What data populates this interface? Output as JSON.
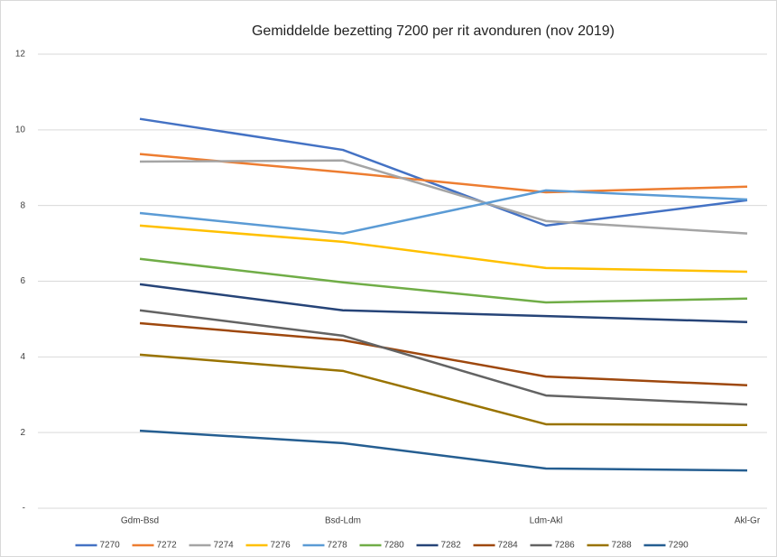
{
  "chart_data": {
    "type": "line",
    "title": "Gemiddelde bezetting 7200 per rit avonduren (nov 2019)",
    "categories": [
      "Gdm-Bsd",
      "Bsd-Ldm",
      "Ldm-Akl",
      "Akl-Gr"
    ],
    "ylim": [
      0,
      12
    ],
    "yticks": [
      {
        "value": 0,
        "label": "-"
      },
      2,
      4,
      6,
      8,
      10,
      12
    ],
    "grid": true,
    "legend": "bottom",
    "series": [
      {
        "name": "7270",
        "color": "#4472c4",
        "values": [
          10.29,
          9.47,
          7.47,
          8.14
        ]
      },
      {
        "name": "7272",
        "color": "#ed7d31",
        "values": [
          9.36,
          8.88,
          8.35,
          8.5
        ]
      },
      {
        "name": "7274",
        "color": "#a5a5a5",
        "values": [
          9.16,
          9.19,
          7.59,
          7.26
        ]
      },
      {
        "name": "7276",
        "color": "#ffc000",
        "values": [
          7.47,
          7.04,
          6.35,
          6.25
        ]
      },
      {
        "name": "7278",
        "color": "#5b9bd5",
        "values": [
          7.8,
          7.26,
          8.4,
          8.16
        ]
      },
      {
        "name": "7280",
        "color": "#70ad47",
        "values": [
          6.59,
          5.97,
          5.44,
          5.54
        ]
      },
      {
        "name": "7282",
        "color": "#264478",
        "values": [
          5.92,
          5.23,
          5.08,
          4.92
        ]
      },
      {
        "name": "7284",
        "color": "#9e480e",
        "values": [
          4.89,
          4.44,
          3.48,
          3.25
        ]
      },
      {
        "name": "7286",
        "color": "#636363",
        "values": [
          5.23,
          4.56,
          2.98,
          2.74
        ]
      },
      {
        "name": "7288",
        "color": "#997300",
        "values": [
          4.06,
          3.63,
          2.22,
          2.2
        ]
      },
      {
        "name": "7290",
        "color": "#255e91",
        "values": [
          2.05,
          1.72,
          1.05,
          1.0
        ]
      }
    ]
  }
}
